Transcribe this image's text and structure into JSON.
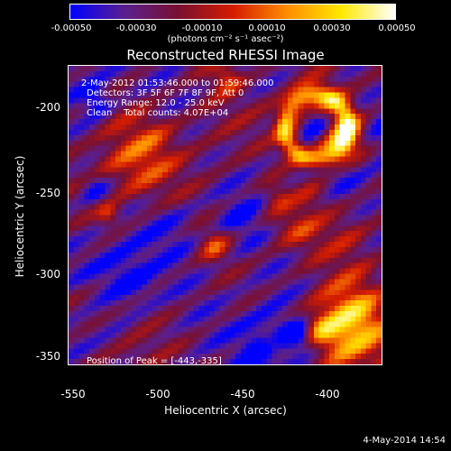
{
  "colorbar": {
    "ticks": [
      "-0.00050",
      "-0.00030",
      "-0.00010",
      "0.00010",
      "0.00030",
      "0.00050"
    ],
    "units": "(photons cm⁻² s⁻¹ asec⁻²)",
    "colors": [
      "#0000ff",
      "#5a1f8f",
      "#7a1030",
      "#d41c00",
      "#ff8c00",
      "#ffe800",
      "#ffffff"
    ]
  },
  "title": "Reconstructed RHESSI Image",
  "annotations": {
    "time_range": "2-May-2012 01:53:46.000 to 01:59:46.000",
    "detectors": "Detectors: 3F 5F 6F 7F 8F 9F, Att 0",
    "energy": "Energy Range: 12.0 - 25.0 keV",
    "clean": "Clean    Total counts: 4.07E+04",
    "peak": "Position of Peak = [-443,-335]"
  },
  "axes": {
    "xlabel": "Heliocentric X (arcsec)",
    "ylabel": "Heliocentric Y (arcsec)",
    "xticks": [
      "-550",
      "-500",
      "-450",
      "-400"
    ],
    "yticks": [
      "-200",
      "-250",
      "-300",
      "-350"
    ],
    "xlim": [
      -550,
      -365
    ],
    "ylim": [
      -372,
      -180
    ]
  },
  "footer": "4-May-2014 14:54"
}
